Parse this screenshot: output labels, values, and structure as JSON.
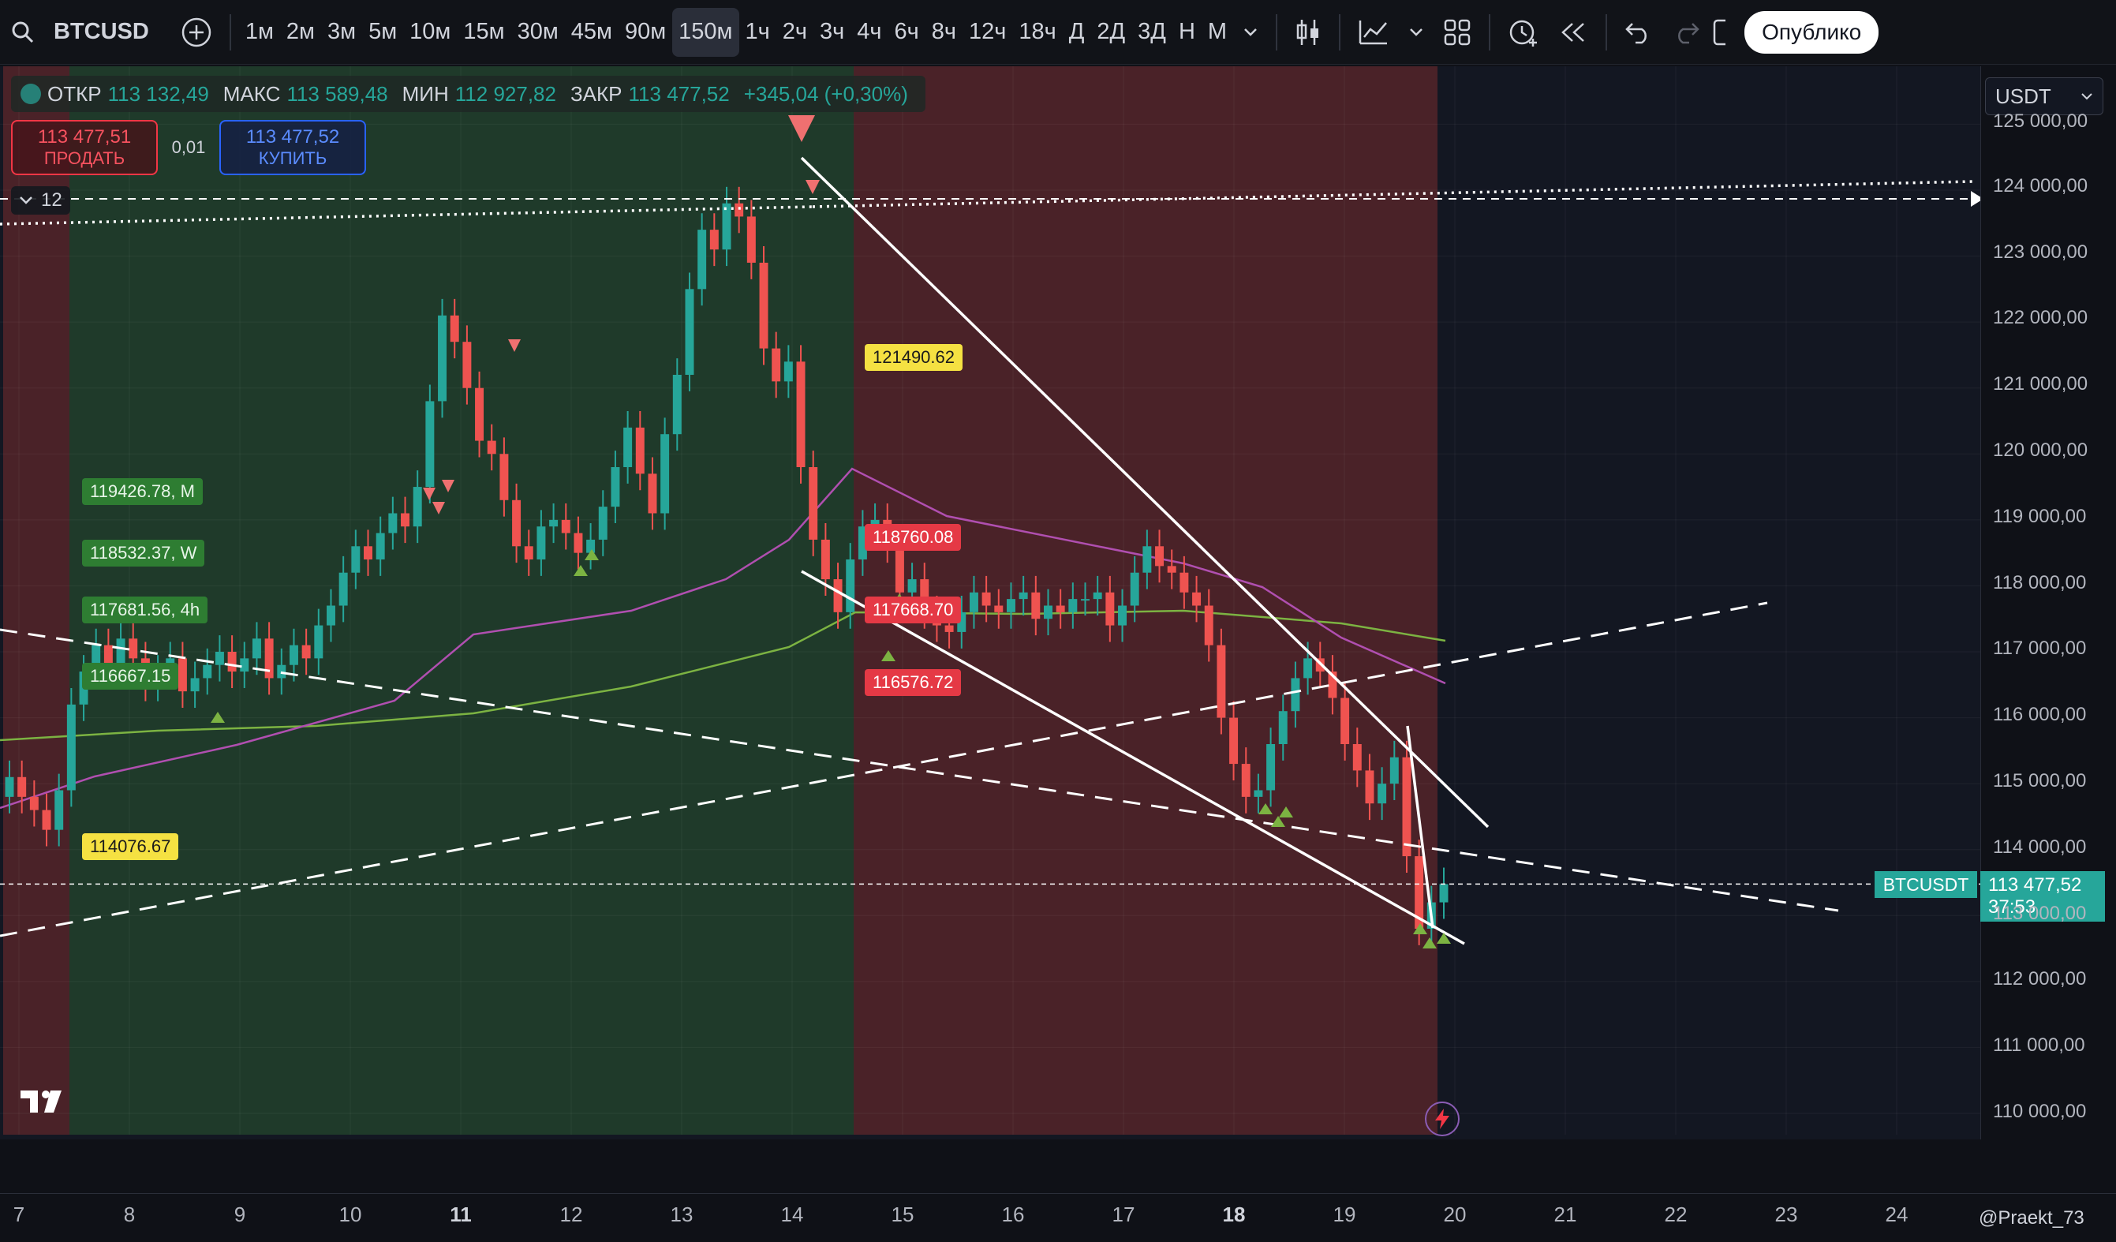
{
  "toolbar": {
    "symbol": "BTCUSD",
    "intervals": [
      "1м",
      "2м",
      "3м",
      "5м",
      "10м",
      "15м",
      "30м",
      "45м",
      "90м",
      "150м",
      "1ч",
      "2ч",
      "3ч",
      "4ч",
      "6ч",
      "8ч",
      "12ч",
      "18ч",
      "Д",
      "2Д",
      "3Д",
      "Н",
      "М"
    ],
    "active_interval": "150м",
    "publish_label": "Опублико"
  },
  "legend": {
    "open_label": "ОТКР",
    "open": "113 132,49",
    "high_label": "МАКС",
    "high": "113 589,48",
    "low_label": "МИН",
    "low": "112 927,82",
    "close_label": "ЗАКР",
    "close": "113 477,52",
    "change": "+345,04 (+0,30%)"
  },
  "trade": {
    "sell_price": "113 477,51",
    "sell_label": "ПРОДАТЬ",
    "quantity": "0,01",
    "buy_price": "113 477,52",
    "buy_label": "КУПИТЬ"
  },
  "collapse_count": "12",
  "currency": "USDT",
  "price_axis": [
    "125 000,00",
    "124 000,00",
    "123 000,00",
    "122 000,00",
    "121 000,00",
    "120 000,00",
    "119 000,00",
    "118 000,00",
    "117 000,00",
    "116 000,00",
    "115 000,00",
    "114 000,00",
    "113 000,00",
    "112 000,00",
    "111 000,00",
    "110 000,00"
  ],
  "time_axis": [
    "7",
    "8",
    "9",
    "10",
    "11",
    "12",
    "13",
    "14",
    "15",
    "16",
    "17",
    "18",
    "19",
    "20",
    "21",
    "22",
    "23",
    "24"
  ],
  "bold_time_labels": [
    "11",
    "18"
  ],
  "current_price": {
    "ticker": "BTCUSDT",
    "price": "113 477,52",
    "countdown": "37:53"
  },
  "annotations": {
    "green": [
      "119426.78, M",
      "118532.37, W",
      "117681.56, 4h",
      "116667.15"
    ],
    "yellow": [
      "121490.62",
      "114076.67"
    ],
    "red": [
      "118760.08",
      "117668.70",
      "116576.72"
    ]
  },
  "watermark": "@Praekt_73",
  "colors": {
    "up": "#26a69a",
    "down": "#ef5350",
    "green_zone": "#1f3a2a",
    "red_zone": "#4a2228",
    "ma_purple": "#b04fb0",
    "ma_green": "#7cb342"
  }
}
